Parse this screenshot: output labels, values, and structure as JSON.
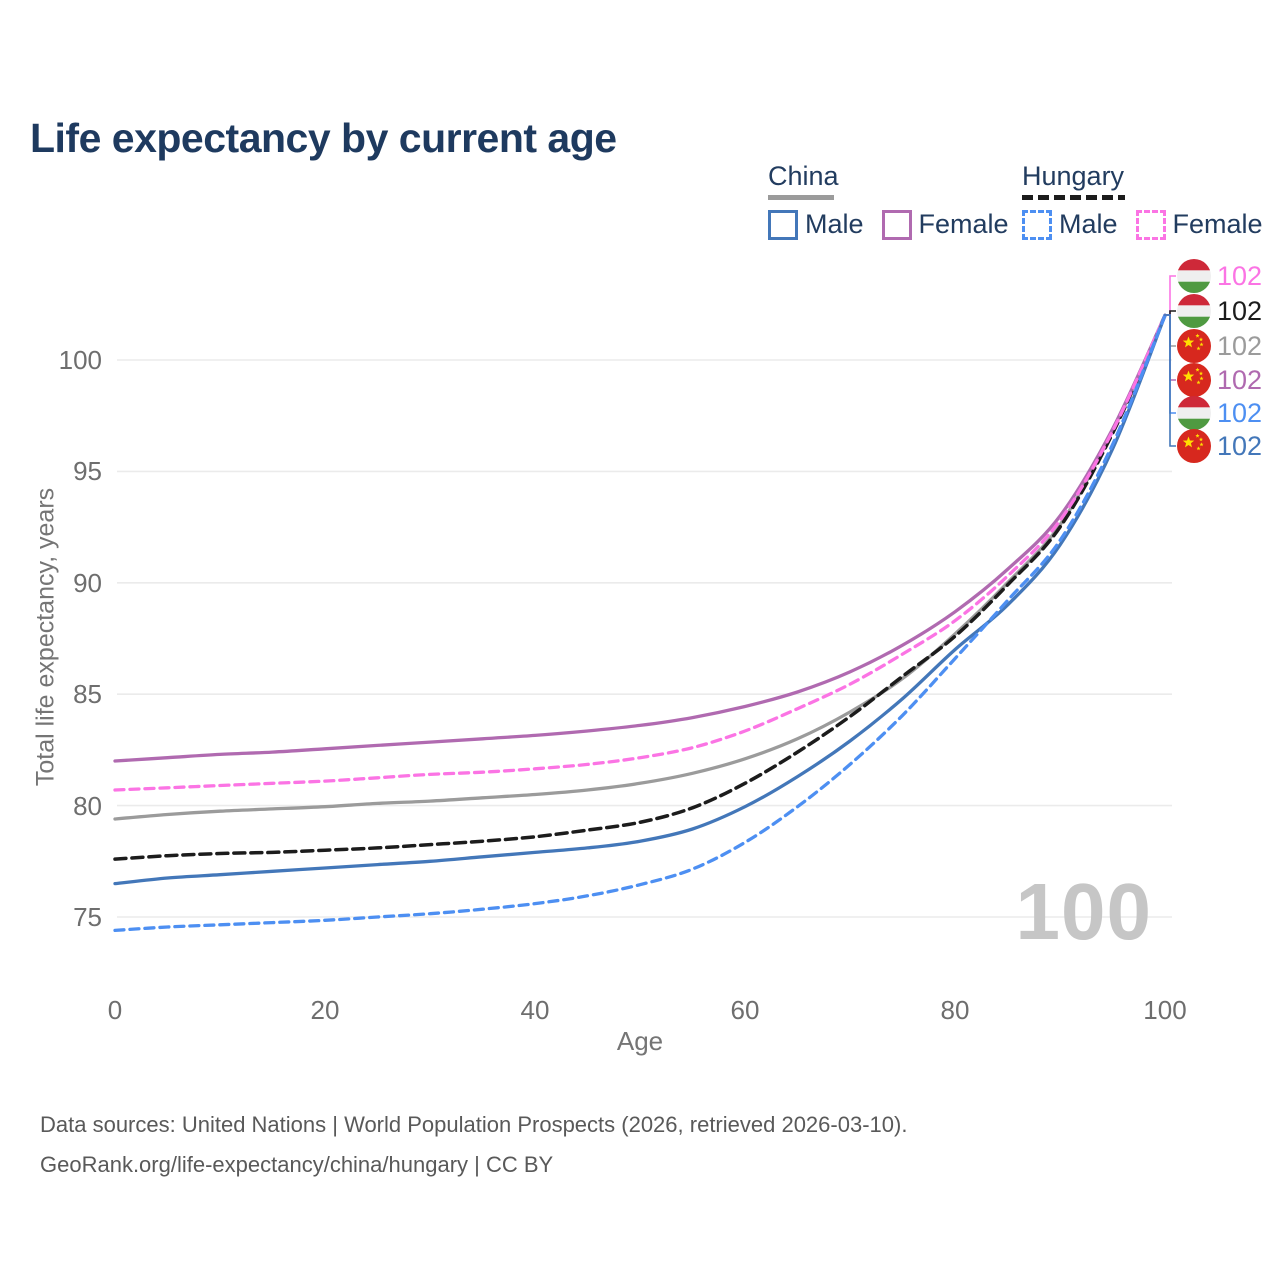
{
  "title": "Life expectancy by current age",
  "watermark": "100",
  "footer": {
    "line1": "Data sources: United Nations | World Population Prospects (2026, retrieved 2026-03-10).",
    "line2": "GeoRank.org/life-expectancy/china/hungary | CC BY"
  },
  "colors": {
    "title": "#1e3a5f",
    "legend_text": "#223c5f",
    "china_male": "#4377b9",
    "china_female": "#b06ab0",
    "china_total": "#9b9b9b",
    "hungary_male": "#4d8ff2",
    "hungary_female": "#fb74e4",
    "hungary_total": "#1c1c1c",
    "grid": "#ebebeb",
    "tick_labels": "#6e6e6e",
    "axis_titles": "#757575",
    "watermark": "#c6c6c6",
    "footer": "#595959",
    "hungary_flag_red": "#ce2939",
    "hungary_flag_white": "#efefef",
    "hungary_flag_green": "#4f9a41",
    "china_flag_red": "#d7281e",
    "china_flag_star": "#ffde00"
  },
  "legend": {
    "groups": [
      {
        "label": "China",
        "underline_color": "#9b9b9b",
        "underline_dashed": false,
        "underline_width": 66,
        "items": [
          {
            "label": "Male",
            "color": "#4377b9",
            "dashed": false
          },
          {
            "label": "Female",
            "color": "#b06ab0",
            "dashed": false
          }
        ]
      },
      {
        "label": "Hungary",
        "underline_color": "#1c1c1c",
        "underline_dashed": true,
        "underline_width": 103,
        "items": [
          {
            "label": "Male",
            "color": "#4d8ff2",
            "dashed": true
          },
          {
            "label": "Female",
            "color": "#fb74e4",
            "dashed": true
          }
        ]
      }
    ]
  },
  "axes": {
    "x": {
      "label": "Age",
      "ticks": [
        0,
        20,
        40,
        60,
        80,
        100
      ]
    },
    "y": {
      "label": "Total life expectancy, years",
      "ticks": [
        75,
        80,
        85,
        90,
        95,
        100
      ]
    }
  },
  "chart_data": {
    "type": "line",
    "title": "Life expectancy by current age",
    "xlabel": "Age",
    "ylabel": "Total life expectancy, years",
    "x_ticks": [
      0,
      20,
      40,
      60,
      80,
      100
    ],
    "y_ticks": [
      75,
      80,
      85,
      90,
      95,
      100
    ],
    "xlim": [
      0,
      100
    ],
    "ylim": [
      73,
      103
    ],
    "grid": "horizontal-only",
    "legend_position": "top-right",
    "ages": [
      0,
      5,
      10,
      15,
      20,
      25,
      30,
      35,
      40,
      45,
      50,
      55,
      60,
      65,
      70,
      75,
      80,
      85,
      90,
      95,
      100
    ],
    "series": [
      {
        "name": "China",
        "country": "china",
        "sex": "both",
        "style": "solid",
        "color": "#9b9b9b",
        "values": [
          79.4,
          79.6,
          79.75,
          79.85,
          79.95,
          80.1,
          80.2,
          80.35,
          80.5,
          80.7,
          81.0,
          81.45,
          82.1,
          83.0,
          84.2,
          85.7,
          87.7,
          90.0,
          92.6,
          96.8,
          102
        ]
      },
      {
        "name": "Hungary",
        "country": "hungary",
        "sex": "both",
        "style": "dashed",
        "color": "#1c1c1c",
        "values": [
          77.6,
          77.75,
          77.85,
          77.9,
          78.0,
          78.1,
          78.25,
          78.4,
          78.6,
          78.9,
          79.25,
          79.9,
          81.0,
          82.4,
          84.0,
          85.8,
          87.6,
          89.9,
          92.5,
          96.7,
          102
        ]
      },
      {
        "name": "China Female",
        "country": "china",
        "sex": "female",
        "style": "solid",
        "color": "#b06ab0",
        "values": [
          82.0,
          82.15,
          82.3,
          82.4,
          82.55,
          82.7,
          82.85,
          83.0,
          83.15,
          83.35,
          83.6,
          83.95,
          84.45,
          85.1,
          86.0,
          87.2,
          88.7,
          90.6,
          93.0,
          96.9,
          102
        ]
      },
      {
        "name": "Hungary Female",
        "country": "hungary",
        "sex": "female",
        "style": "dashed",
        "color": "#fb74e4",
        "values": [
          80.7,
          80.8,
          80.9,
          81.0,
          81.1,
          81.25,
          81.4,
          81.5,
          81.65,
          81.85,
          82.15,
          82.6,
          83.35,
          84.35,
          85.45,
          86.8,
          88.3,
          90.3,
          92.8,
          96.8,
          102
        ]
      },
      {
        "name": "China Male",
        "country": "china",
        "sex": "male",
        "style": "solid",
        "color": "#4377b9",
        "values": [
          76.5,
          76.75,
          76.9,
          77.05,
          77.2,
          77.35,
          77.5,
          77.7,
          77.9,
          78.1,
          78.4,
          78.95,
          79.95,
          81.3,
          82.9,
          84.8,
          87.0,
          89.0,
          91.7,
          96.0,
          102
        ]
      },
      {
        "name": "Hungary Male",
        "country": "hungary",
        "sex": "male",
        "style": "dashed",
        "color": "#4d8ff2",
        "values": [
          74.4,
          74.55,
          74.65,
          74.75,
          74.85,
          75.0,
          75.15,
          75.35,
          75.6,
          75.95,
          76.45,
          77.15,
          78.35,
          79.95,
          81.85,
          84.05,
          86.6,
          89.2,
          91.9,
          96.2,
          102
        ]
      }
    ],
    "end_labels": [
      {
        "series": "Hungary Female",
        "flag": "hungary",
        "value": "102",
        "color": "#fb74e4"
      },
      {
        "series": "Hungary",
        "flag": "hungary",
        "value": "102",
        "color": "#1c1c1c"
      },
      {
        "series": "China",
        "flag": "china",
        "value": "102",
        "color": "#9b9b9b"
      },
      {
        "series": "China Female",
        "flag": "china",
        "value": "102",
        "color": "#b06ab0"
      },
      {
        "series": "Hungary Male",
        "flag": "hungary",
        "value": "102",
        "color": "#4d8ff2"
      },
      {
        "series": "China Male",
        "flag": "china",
        "value": "102",
        "color": "#4377b9"
      }
    ]
  }
}
